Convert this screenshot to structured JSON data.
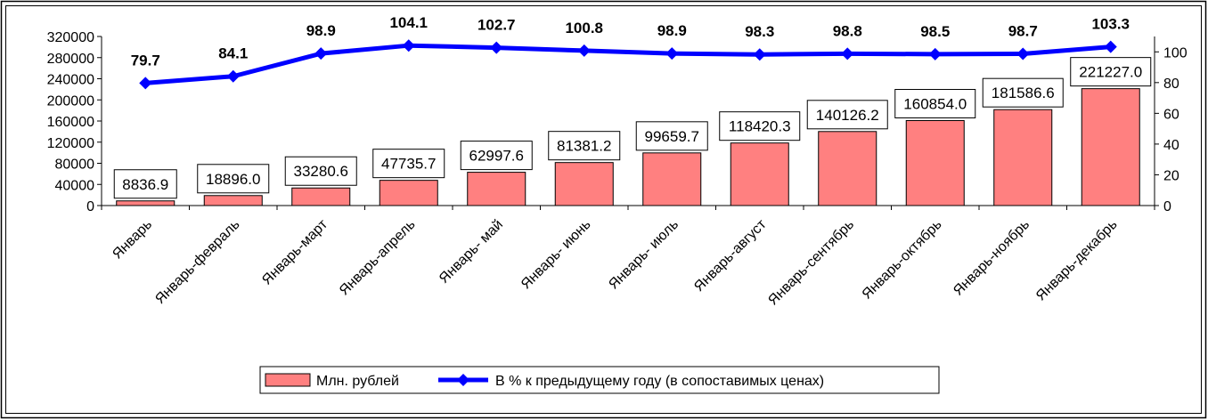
{
  "chart_data": {
    "type": "bar",
    "categories": [
      "Январь",
      "Январь-февраль",
      "Январь-март",
      "Январь-апрель",
      "Январь-      май",
      "Январь-  июнь",
      "Январь-  июль",
      "Январь-август",
      "Январь-сентябрь",
      "Январь-октябрь",
      "Январь-ноябрь",
      "Январь-декабрь"
    ],
    "series": [
      {
        "name": "Млн. рублей",
        "kind": "bar",
        "axis": "left",
        "color": "#FF8080",
        "values": [
          8836.9,
          18896.0,
          33280.6,
          47735.7,
          62997.6,
          81381.2,
          99659.7,
          118420.3,
          140126.2,
          160854.0,
          181586.6,
          221227.0
        ],
        "labels": [
          "8836.9",
          "18896.0",
          "33280.6",
          "47735.7",
          "62997.6",
          "81381.2",
          "99659.7",
          "118420.3",
          "140126.2",
          "160854.0",
          "181586.6",
          "221227.0"
        ]
      },
      {
        "name": "В % к предыдущему году (в сопоставимых ценах)",
        "kind": "line",
        "axis": "right",
        "color": "#0000FF",
        "values": [
          79.7,
          84.1,
          98.9,
          104.1,
          102.7,
          100.8,
          98.9,
          98.3,
          98.8,
          98.5,
          98.7,
          103.3
        ],
        "labels": [
          "79.7",
          "84.1",
          "98.9",
          "104.1",
          "102.7",
          "100.8",
          "98.9",
          "98.3",
          "98.8",
          "98.5",
          "98.7",
          "103.3"
        ]
      }
    ],
    "y_left": {
      "range": [
        0,
        320000
      ],
      "ticks": [
        0,
        40000,
        80000,
        120000,
        160000,
        200000,
        240000,
        280000,
        320000
      ],
      "tick_labels": [
        "0",
        "40000",
        "80000",
        "120000",
        "160000",
        "200000",
        "240000",
        "280000",
        "320000"
      ]
    },
    "y_right": {
      "range": [
        0,
        110
      ],
      "ticks": [
        0,
        20,
        40,
        60,
        80,
        100
      ],
      "tick_labels": [
        "0",
        "20",
        "40",
        "60",
        "80",
        "100"
      ]
    },
    "title": "",
    "xlabel": "",
    "ylabel": "",
    "grid": false,
    "legend_position": "bottom-center"
  }
}
